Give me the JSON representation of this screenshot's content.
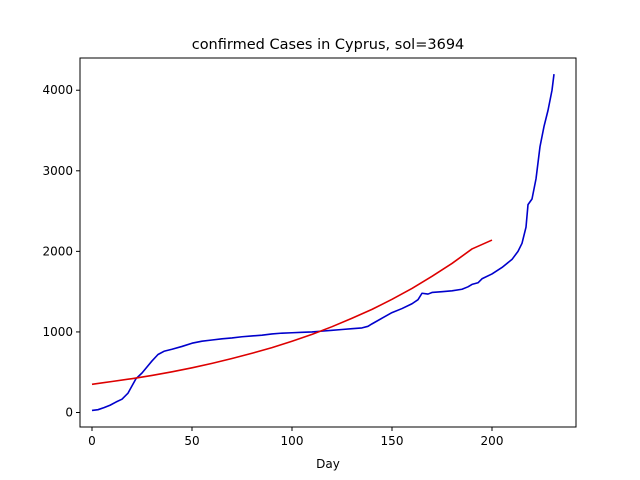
{
  "chart_data": {
    "type": "line",
    "title": "confirmed Cases in Cyprus, sol=3694",
    "xlabel": "Day",
    "ylabel": "",
    "xlim": [
      -6,
      242
    ],
    "ylim": [
      -180,
      4400
    ],
    "x_ticks": [
      0,
      50,
      100,
      150,
      200
    ],
    "y_ticks": [
      0,
      1000,
      2000,
      3000,
      4000
    ],
    "grid": false,
    "series": [
      {
        "color": "#0000cc",
        "points": [
          [
            0,
            25
          ],
          [
            3,
            35
          ],
          [
            6,
            60
          ],
          [
            9,
            90
          ],
          [
            12,
            130
          ],
          [
            15,
            165
          ],
          [
            18,
            240
          ],
          [
            20,
            330
          ],
          [
            22,
            420
          ],
          [
            25,
            490
          ],
          [
            28,
            580
          ],
          [
            30,
            640
          ],
          [
            33,
            720
          ],
          [
            36,
            760
          ],
          [
            40,
            785
          ],
          [
            45,
            820
          ],
          [
            50,
            860
          ],
          [
            55,
            885
          ],
          [
            60,
            900
          ],
          [
            65,
            915
          ],
          [
            70,
            925
          ],
          [
            75,
            940
          ],
          [
            80,
            950
          ],
          [
            85,
            960
          ],
          [
            90,
            975
          ],
          [
            95,
            985
          ],
          [
            100,
            990
          ],
          [
            105,
            995
          ],
          [
            110,
            1000
          ],
          [
            115,
            1010
          ],
          [
            120,
            1020
          ],
          [
            125,
            1030
          ],
          [
            130,
            1040
          ],
          [
            135,
            1050
          ],
          [
            138,
            1070
          ],
          [
            140,
            1100
          ],
          [
            145,
            1170
          ],
          [
            150,
            1240
          ],
          [
            155,
            1290
          ],
          [
            160,
            1350
          ],
          [
            163,
            1400
          ],
          [
            165,
            1480
          ],
          [
            168,
            1470
          ],
          [
            170,
            1490
          ],
          [
            175,
            1500
          ],
          [
            180,
            1510
          ],
          [
            185,
            1530
          ],
          [
            188,
            1560
          ],
          [
            190,
            1590
          ],
          [
            193,
            1610
          ],
          [
            195,
            1660
          ],
          [
            200,
            1720
          ],
          [
            205,
            1800
          ],
          [
            210,
            1900
          ],
          [
            213,
            2000
          ],
          [
            215,
            2100
          ],
          [
            217,
            2300
          ],
          [
            218,
            2580
          ],
          [
            220,
            2650
          ],
          [
            222,
            2900
          ],
          [
            224,
            3300
          ],
          [
            226,
            3550
          ],
          [
            228,
            3750
          ],
          [
            230,
            4000
          ],
          [
            231,
            4200
          ]
        ]
      },
      {
        "color": "#dd0000",
        "points": [
          [
            0,
            350
          ],
          [
            10,
            385
          ],
          [
            20,
            420
          ],
          [
            30,
            460
          ],
          [
            40,
            505
          ],
          [
            50,
            555
          ],
          [
            60,
            610
          ],
          [
            70,
            670
          ],
          [
            80,
            735
          ],
          [
            90,
            805
          ],
          [
            100,
            885
          ],
          [
            110,
            970
          ],
          [
            120,
            1065
          ],
          [
            130,
            1170
          ],
          [
            140,
            1280
          ],
          [
            150,
            1405
          ],
          [
            160,
            1540
          ],
          [
            170,
            1690
          ],
          [
            180,
            1850
          ],
          [
            190,
            2030
          ],
          [
            200,
            2140
          ]
        ]
      }
    ]
  }
}
